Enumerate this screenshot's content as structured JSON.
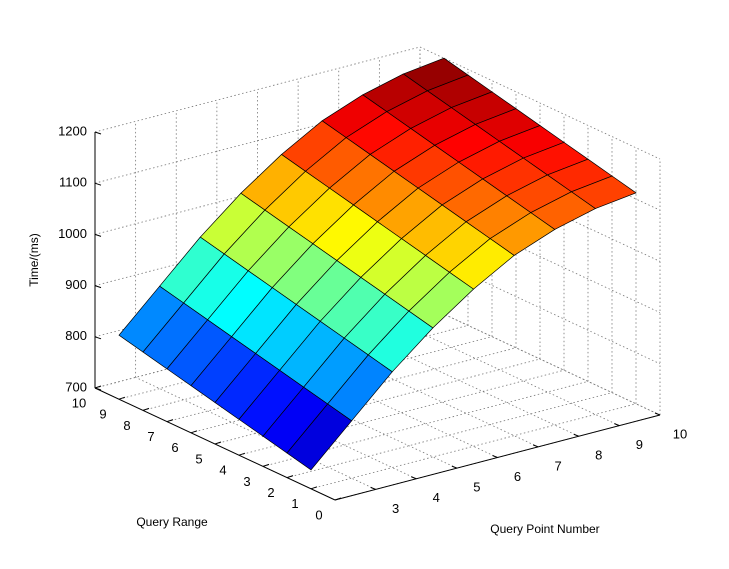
{
  "chart_data": {
    "type": "surface",
    "xlabel": "Query Point Number",
    "ylabel": "Query Range",
    "zlabel": "Time/(ms)",
    "x": [
      2,
      3,
      4,
      5,
      6,
      7,
      8,
      9,
      10
    ],
    "y": [
      1,
      2,
      3,
      4,
      5,
      6,
      7,
      8,
      9
    ],
    "z": [
      [
        737,
        812,
        887,
        952,
        1007,
        1052,
        1082,
        1102,
        1112
      ],
      [
        748,
        823,
        898,
        963,
        1018,
        1063,
        1093,
        1113,
        1123
      ],
      [
        759,
        834,
        909,
        974,
        1029,
        1074,
        1104,
        1124,
        1134
      ],
      [
        770,
        845,
        920,
        985,
        1040,
        1085,
        1115,
        1135,
        1145
      ],
      [
        781,
        856,
        931,
        996,
        1051,
        1096,
        1126,
        1146,
        1156
      ],
      [
        792,
        867,
        942,
        1007,
        1062,
        1107,
        1137,
        1157,
        1167
      ],
      [
        803,
        878,
        953,
        1018,
        1073,
        1118,
        1148,
        1168,
        1178
      ],
      [
        814,
        889,
        964,
        1029,
        1084,
        1129,
        1159,
        1179,
        1189
      ],
      [
        825,
        900,
        975,
        1040,
        1095,
        1140,
        1170,
        1190,
        1200
      ]
    ],
    "xlim": [
      2,
      10
    ],
    "xticks": [
      3,
      4,
      5,
      6,
      7,
      8,
      9,
      10
    ],
    "ylim": [
      0,
      10
    ],
    "yticks": [
      0,
      1,
      2,
      3,
      4,
      5,
      6,
      7,
      8,
      9,
      10
    ],
    "zlim": [
      700,
      1200
    ],
    "zticks": [
      700,
      800,
      900,
      1000,
      1100,
      1200
    ],
    "colormap": "jet",
    "grid": true
  }
}
